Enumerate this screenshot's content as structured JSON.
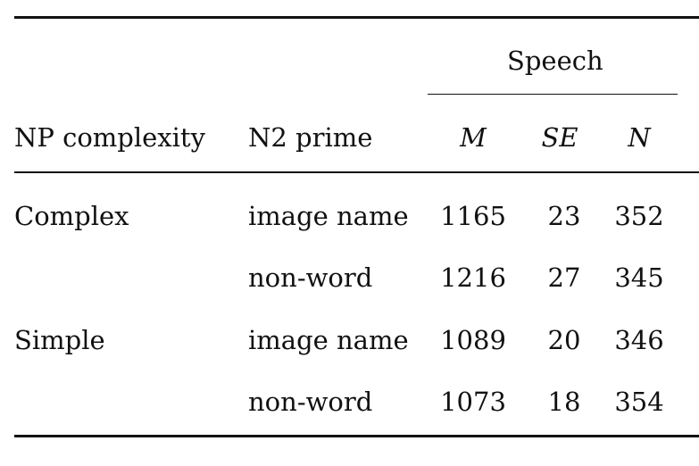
{
  "table": {
    "group_header": "Speech",
    "columns": {
      "np_complexity": "NP complexity",
      "n2_prime": "N2 prime",
      "m": "M",
      "se": "SE",
      "n": "N"
    },
    "rows": [
      {
        "np_complexity": "Complex",
        "n2_prime": "image name",
        "m": "1165",
        "se": "23",
        "n": "352"
      },
      {
        "np_complexity": "",
        "n2_prime": "non-word",
        "m": "1216",
        "se": "27",
        "n": "345"
      },
      {
        "np_complexity": "Simple",
        "n2_prime": "image name",
        "m": "1089",
        "se": "20",
        "n": "346"
      },
      {
        "np_complexity": "",
        "n2_prime": "non-word",
        "m": "1073",
        "se": "18",
        "n": "354"
      }
    ]
  }
}
